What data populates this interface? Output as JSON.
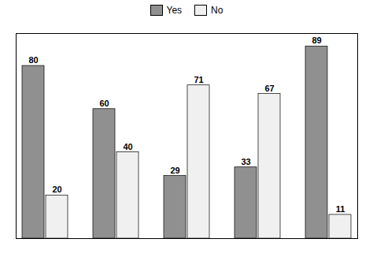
{
  "chart_data": {
    "type": "bar",
    "categories": [
      null,
      null,
      null,
      null,
      null
    ],
    "series": [
      {
        "name": "Yes",
        "color": "#909090",
        "values": [
          80,
          60,
          29,
          33,
          89
        ]
      },
      {
        "name": "No",
        "color": "#f0f0f0",
        "values": [
          20,
          40,
          71,
          67,
          11
        ]
      }
    ],
    "ylim": [
      0,
      95
    ],
    "yticks": [],
    "grid": false,
    "legend": "top",
    "data_labels": true,
    "tick_labels": false
  }
}
